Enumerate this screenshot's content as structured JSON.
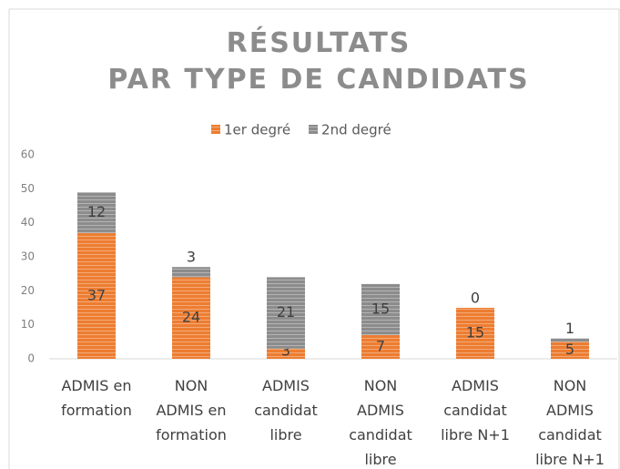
{
  "chart_data": {
    "type": "stacked_bar",
    "title": "RÉSULTATS PAR TYPE DE CANDIDATS",
    "categories": [
      "ADMIS en formation",
      "NON ADMIS en formation",
      "ADMIS candidat libre",
      "NON ADMIS candidat libre",
      "ADMIS candidat libre N+1",
      "NON ADMIS candidat libre N+1"
    ],
    "series": [
      {
        "name": "1er degré",
        "color": "#ed7d31",
        "values": [
          37,
          24,
          3,
          7,
          15,
          5
        ]
      },
      {
        "name": "2nd degré",
        "color": "#8c8c8c",
        "values": [
          12,
          3,
          21,
          15,
          0,
          1
        ]
      }
    ],
    "ylim": [
      0,
      60
    ],
    "yticks": [
      0,
      10,
      20,
      30,
      40,
      50,
      60
    ],
    "legend": "top"
  }
}
